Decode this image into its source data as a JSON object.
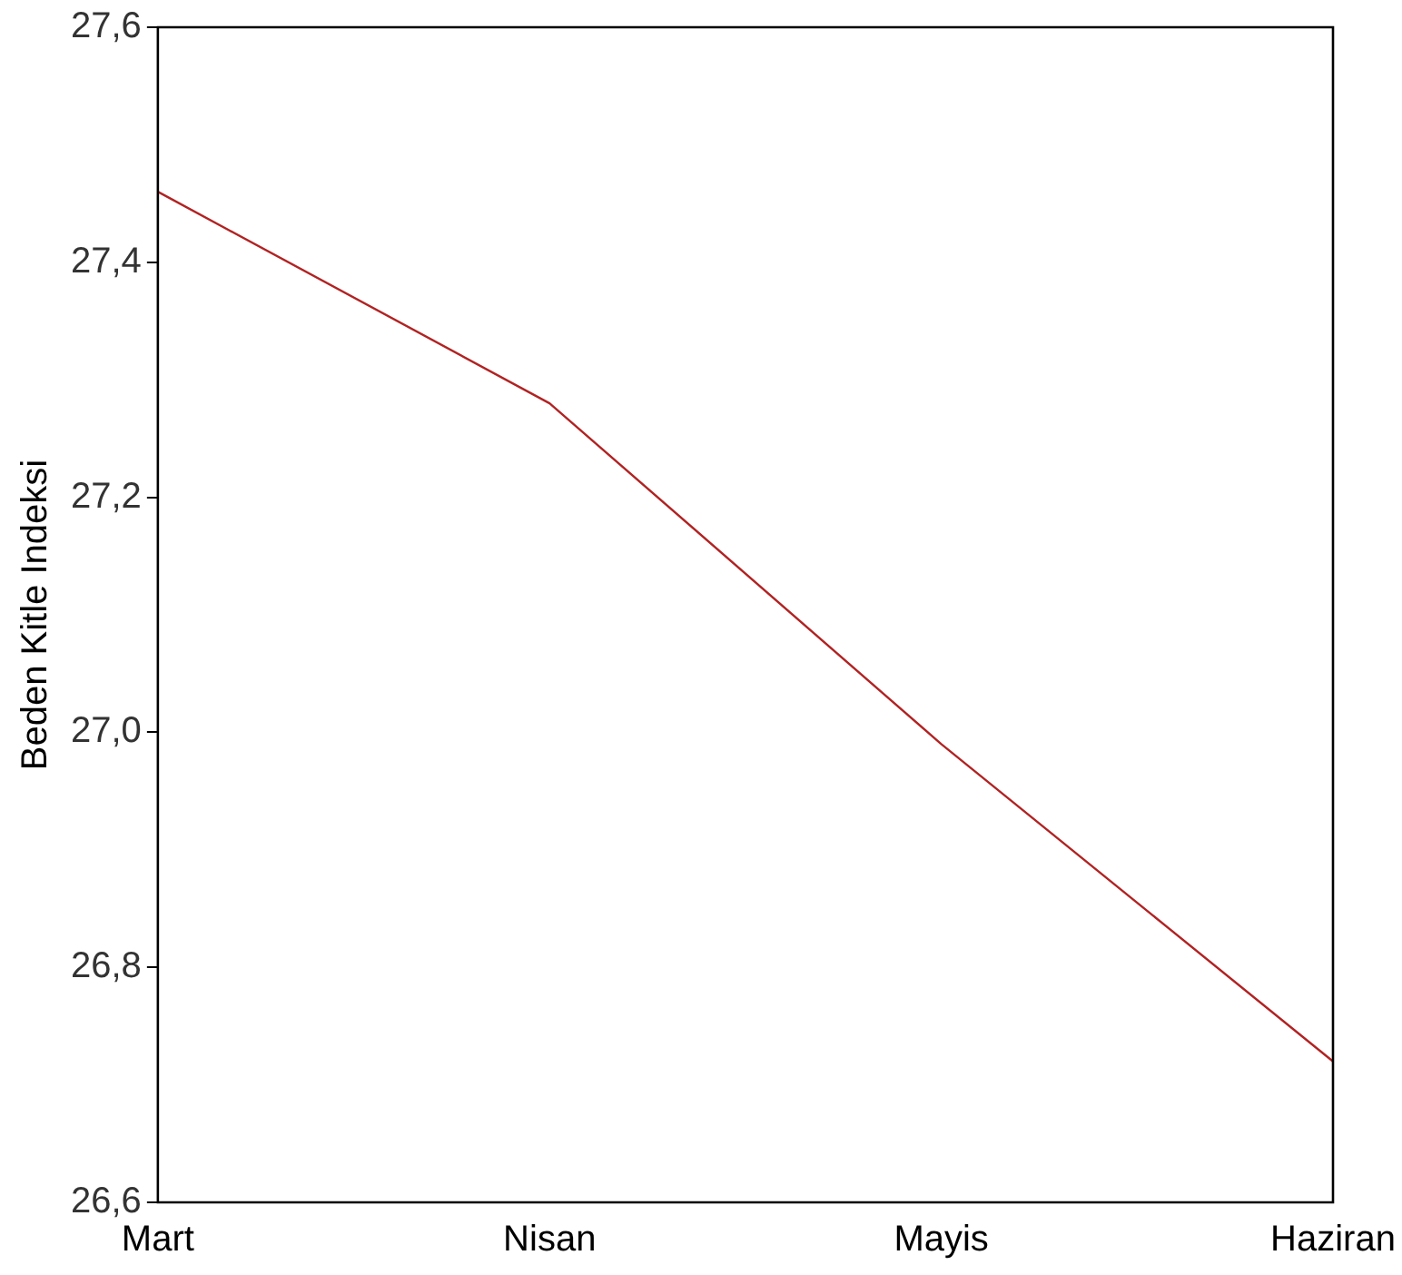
{
  "chart_data": {
    "type": "line",
    "ylabel": "Beden Kitle Indeksi",
    "categories": [
      "Mart",
      "Nisan",
      "Mayis",
      "Haziran"
    ],
    "series": [
      {
        "color": "#b22222",
        "values": [
          27.46,
          27.28,
          26.99,
          26.72
        ]
      }
    ],
    "ylim": [
      26.6,
      27.6
    ],
    "yticks": [
      {
        "value": 26.6,
        "label": "26,6"
      },
      {
        "value": 26.8,
        "label": "26,8"
      },
      {
        "value": 27.0,
        "label": "27,0"
      },
      {
        "value": 27.2,
        "label": "27,2"
      },
      {
        "value": 27.4,
        "label": "27,4"
      },
      {
        "value": 27.6,
        "label": "27,6"
      }
    ],
    "grid": false,
    "legend": false,
    "marker": "none",
    "line_style": "solid"
  }
}
